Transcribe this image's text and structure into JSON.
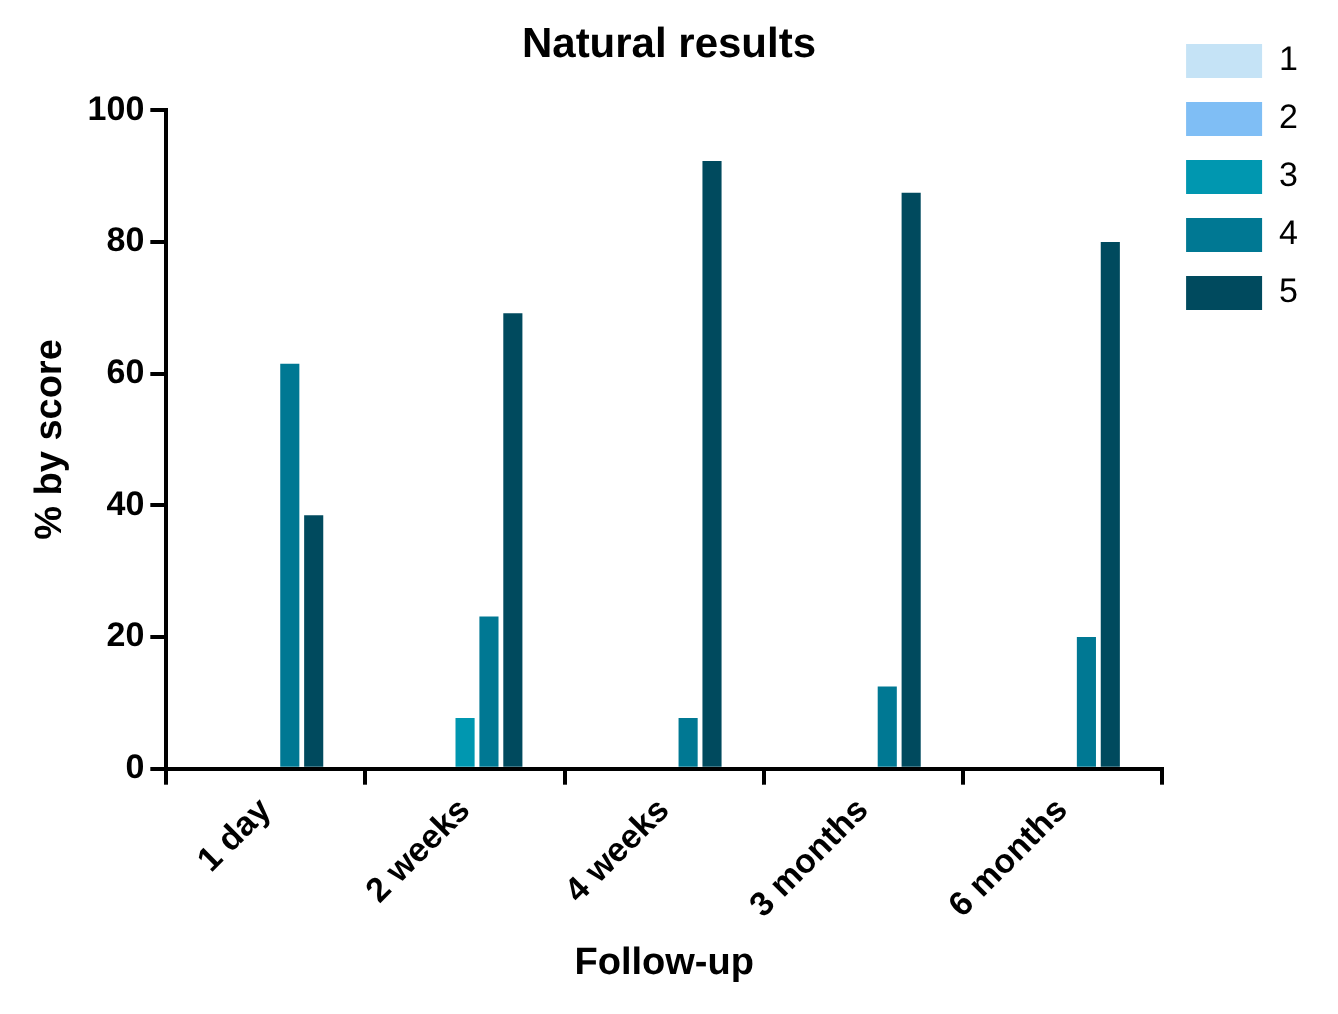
{
  "chart_data": {
    "type": "bar",
    "title": "Natural results",
    "xlabel": "Follow-up",
    "ylabel": "% by score",
    "categories": [
      "1 day",
      "2 weeks",
      "4 weeks",
      "3 months",
      "6 months"
    ],
    "series": [
      {
        "name": "1",
        "color": "#c5e3f6",
        "values": [
          0,
          0,
          0,
          0,
          0
        ]
      },
      {
        "name": "2",
        "color": "#7fbef5",
        "values": [
          0,
          0,
          0,
          0,
          0
        ]
      },
      {
        "name": "3",
        "color": "#0097b0",
        "values": [
          0,
          7.7,
          0,
          0,
          0
        ]
      },
      {
        "name": "4",
        "color": "#007893",
        "values": [
          61.5,
          23.1,
          7.7,
          12.5,
          20
        ]
      },
      {
        "name": "5",
        "color": "#004a5e",
        "values": [
          38.5,
          69.2,
          92.3,
          87.5,
          80
        ]
      }
    ],
    "ylim": [
      0,
      100
    ],
    "yticks": [
      0,
      20,
      40,
      60,
      80,
      100
    ],
    "grid": false,
    "legend": "right"
  }
}
